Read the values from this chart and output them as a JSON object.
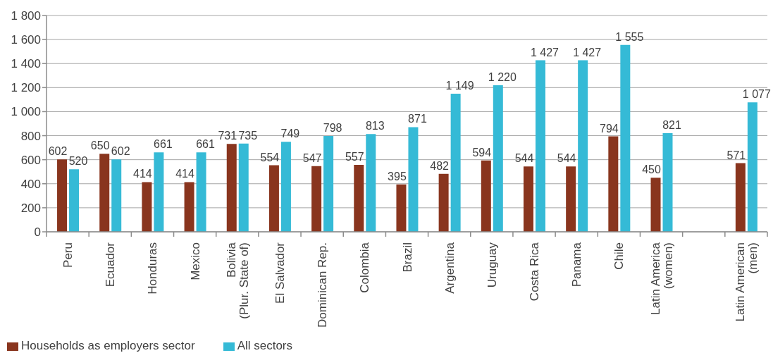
{
  "chart_data": {
    "type": "bar",
    "categories": [
      "Peru",
      "Ecuador",
      "Honduras",
      "Mexico",
      "Bolivia\n(Plur. State of)",
      "El Salvador",
      "Dominican Rep.",
      "Colombia",
      "Brazil",
      "Argentina",
      "Uruguay",
      "Costa Rica",
      "Panama",
      "Chile",
      "Latin America\n(women)",
      null,
      "Latin American\n(men)"
    ],
    "series": [
      {
        "name": "Households as employers sector",
        "color": "#89351e",
        "values": [
          602,
          650,
          414,
          414,
          731,
          554,
          547,
          557,
          395,
          482,
          594,
          544,
          544,
          794,
          450,
          null,
          571
        ],
        "value_labels": [
          "602",
          "650",
          "414",
          "414",
          "731",
          "554",
          "547",
          "557",
          "395",
          "482",
          "594",
          "544",
          "544",
          "794",
          "450",
          null,
          "571"
        ]
      },
      {
        "name": "All sectors",
        "color": "#35bad6",
        "values": [
          520,
          602,
          661,
          661,
          735,
          749,
          798,
          813,
          871,
          1149,
          1220,
          1427,
          1427,
          1555,
          821,
          null,
          1077
        ],
        "value_labels": [
          "520",
          "602",
          "661",
          "661",
          "735",
          "749",
          "798",
          "813",
          "871",
          "1 149",
          "1 220",
          "1 427",
          "1 427",
          "1 555",
          "821",
          null,
          "1 077"
        ]
      }
    ],
    "ylim": [
      0,
      1800
    ],
    "yticks": [
      0,
      200,
      400,
      600,
      800,
      {
        "value": 1000,
        "label": "1 000"
      },
      {
        "value": 1200,
        "label": "1 200"
      },
      {
        "value": 1400,
        "label": "1 400"
      },
      {
        "value": 1600,
        "label": "1 600"
      },
      {
        "value": 1800,
        "label": "1 800"
      }
    ],
    "grid": "y",
    "legend": "bottom left"
  }
}
